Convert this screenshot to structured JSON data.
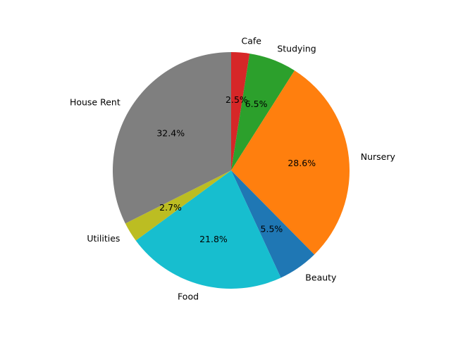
{
  "chart_data": {
    "type": "pie",
    "title": "",
    "start_angle_deg": 90,
    "direction": "clockwise",
    "legend": "none",
    "slices": [
      {
        "label": "Cafe",
        "value": 2.5,
        "pct_label": "2.5%",
        "color": "#d62728"
      },
      {
        "label": "Studying",
        "value": 6.5,
        "pct_label": "6.5%",
        "color": "#2ca02c"
      },
      {
        "label": "Nursery",
        "value": 28.6,
        "pct_label": "28.6%",
        "color": "#ff7f0e"
      },
      {
        "label": "Beauty",
        "value": 5.5,
        "pct_label": "5.5%",
        "color": "#1f77b4"
      },
      {
        "label": "Food",
        "value": 21.8,
        "pct_label": "21.8%",
        "color": "#17becf"
      },
      {
        "label": "Utilities",
        "value": 2.7,
        "pct_label": "2.7%",
        "color": "#bcbd22"
      },
      {
        "label": "House Rent",
        "value": 32.4,
        "pct_label": "32.4%",
        "color": "#7f7f7f"
      }
    ]
  }
}
